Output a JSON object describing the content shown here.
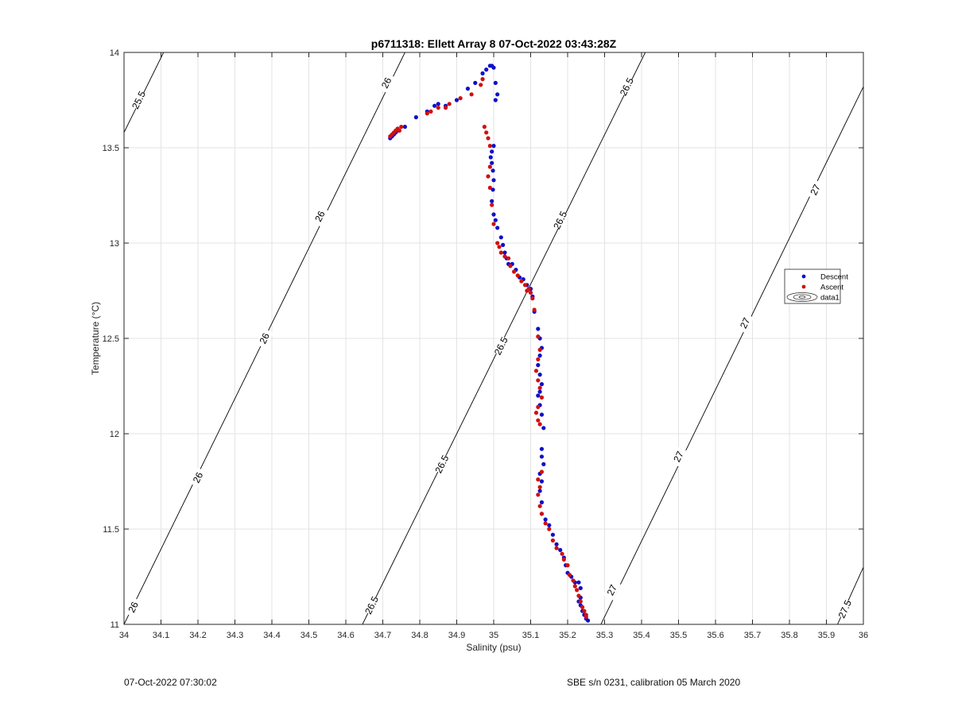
{
  "chart_data": {
    "type": "scatter",
    "title": "p6711318: Ellett Array 8 07-Oct-2022 03:43:28Z",
    "xlabel": "Salinity (psu)",
    "ylabel": "Temperature (°C)",
    "xlim": [
      34,
      36
    ],
    "ylim": [
      11,
      14
    ],
    "xticks": [
      "34",
      "34.1",
      "34.2",
      "34.3",
      "34.4",
      "34.5",
      "34.6",
      "34.7",
      "34.8",
      "34.9",
      "35",
      "35.1",
      "35.2",
      "35.3",
      "35.4",
      "35.5",
      "35.6",
      "35.7",
      "35.8",
      "35.9",
      "36"
    ],
    "yticks": [
      "11",
      "11.5",
      "12",
      "12.5",
      "13",
      "13.5",
      "14"
    ],
    "grid": true,
    "legend": {
      "placement": "right",
      "entries": [
        "Descent",
        "Ascent",
        "data1"
      ]
    },
    "colors": {
      "descent": "#1010c8",
      "ascent": "#d01010",
      "contour": "#000000",
      "grid": "#e3e3e3"
    },
    "series": [
      {
        "name": "Descent",
        "x": [
          34.72,
          34.725,
          34.73,
          34.735,
          34.74,
          34.76,
          34.79,
          34.82,
          34.84,
          34.85,
          34.87,
          34.9,
          34.93,
          34.95,
          34.97,
          34.98,
          34.99,
          34.995,
          35.0,
          35.005,
          35.01,
          35.005,
          35.0,
          34.995,
          34.992,
          34.995,
          34.998,
          35.0,
          34.998,
          34.995,
          35.0,
          35.005,
          35.01,
          35.02,
          35.025,
          35.03,
          35.035,
          35.04,
          35.05,
          35.06,
          35.07,
          35.08,
          35.09,
          35.1,
          35.105,
          35.11,
          35.12,
          35.125,
          35.13,
          35.125,
          35.12,
          35.125,
          35.13,
          35.125,
          35.12,
          35.125,
          35.13,
          35.135,
          35.13,
          35.13,
          35.135,
          35.125,
          35.13,
          35.125,
          35.13,
          35.13,
          35.14,
          35.15,
          35.16,
          35.17,
          35.18,
          35.19,
          35.195,
          35.2,
          35.21,
          35.22,
          35.23,
          35.235,
          35.235,
          35.23,
          35.235,
          35.24,
          35.245,
          35.25,
          35.255
        ],
        "y": [
          13.55,
          13.56,
          13.57,
          13.58,
          13.59,
          13.61,
          13.66,
          13.69,
          13.72,
          13.73,
          13.72,
          13.75,
          13.81,
          13.84,
          13.89,
          13.91,
          13.93,
          13.93,
          13.92,
          13.84,
          13.78,
          13.75,
          13.51,
          13.48,
          13.45,
          13.42,
          13.38,
          13.33,
          13.28,
          13.22,
          13.15,
          13.12,
          13.08,
          13.03,
          12.99,
          12.95,
          12.92,
          12.89,
          12.89,
          12.86,
          12.82,
          12.81,
          12.78,
          12.76,
          12.72,
          12.64,
          12.55,
          12.5,
          12.45,
          12.41,
          12.36,
          12.31,
          12.26,
          12.22,
          12.2,
          12.15,
          12.1,
          12.03,
          11.92,
          11.88,
          11.84,
          11.79,
          11.75,
          11.7,
          11.64,
          11.58,
          11.55,
          11.52,
          11.47,
          11.42,
          11.39,
          11.35,
          11.31,
          11.27,
          11.25,
          11.22,
          11.22,
          11.19,
          11.14,
          11.12,
          11.1,
          11.07,
          11.05,
          11.03,
          11.02
        ]
      },
      {
        "name": "Ascent",
        "x": [
          34.725,
          34.73,
          34.735,
          34.74,
          34.745,
          34.75,
          34.72,
          34.82,
          34.83,
          34.85,
          34.87,
          34.88,
          34.91,
          34.94,
          34.965,
          34.97,
          34.975,
          34.98,
          34.985,
          34.99,
          34.99,
          34.985,
          34.99,
          34.995,
          35.0,
          35.01,
          35.015,
          35.02,
          35.03,
          35.04,
          35.045,
          35.055,
          35.065,
          35.075,
          35.085,
          35.09,
          35.095,
          35.1,
          35.105,
          35.11,
          35.12,
          35.125,
          35.12,
          35.115,
          35.12,
          35.125,
          35.13,
          35.12,
          35.115,
          35.12,
          35.125,
          35.13,
          35.12,
          35.125,
          35.12,
          35.125,
          35.13,
          35.14,
          35.15,
          35.16,
          35.17,
          35.185,
          35.19,
          35.2,
          35.205,
          35.215,
          35.22,
          35.225,
          35.23,
          35.235,
          35.24,
          35.245,
          35.25,
          35.25
        ],
        "y": [
          13.57,
          13.58,
          13.59,
          13.6,
          13.59,
          13.61,
          13.56,
          13.68,
          13.69,
          13.71,
          13.71,
          13.73,
          13.76,
          13.78,
          13.83,
          13.86,
          13.61,
          13.58,
          13.55,
          13.51,
          13.4,
          13.35,
          13.29,
          13.2,
          13.1,
          13.0,
          12.98,
          12.95,
          12.93,
          12.92,
          12.88,
          12.85,
          12.83,
          12.8,
          12.78,
          12.75,
          12.76,
          12.74,
          12.71,
          12.65,
          12.51,
          12.44,
          12.39,
          12.33,
          12.28,
          12.24,
          12.19,
          12.14,
          12.11,
          12.07,
          12.05,
          11.8,
          11.76,
          11.72,
          11.68,
          11.62,
          11.58,
          11.53,
          11.5,
          11.44,
          11.4,
          11.37,
          11.34,
          11.31,
          11.26,
          11.23,
          11.2,
          11.18,
          11.15,
          11.12,
          11.09,
          11.07,
          11.05,
          11.04
        ]
      }
    ],
    "isopycnals": [
      {
        "name": "25.5",
        "x": [
          34.0,
          34.107
        ],
        "y": [
          13.58,
          14.0
        ],
        "labels": [
          {
            "text": "25.5",
            "x": 34.04,
            "y": 13.75
          }
        ]
      },
      {
        "name": "26",
        "x": [
          34.0,
          34.76
        ],
        "y": [
          11.0,
          14.0
        ],
        "labels": [
          {
            "text": "26",
            "x": 34.025,
            "y": 11.09
          },
          {
            "text": "26",
            "x": 34.2,
            "y": 11.77
          },
          {
            "text": "26",
            "x": 34.38,
            "y": 12.5
          },
          {
            "text": "26",
            "x": 34.53,
            "y": 13.14
          },
          {
            "text": "26",
            "x": 34.71,
            "y": 13.84
          }
        ]
      },
      {
        "name": "26.5",
        "x": [
          34.645,
          35.41
        ],
        "y": [
          11.0,
          14.0
        ],
        "labels": [
          {
            "text": "26.5",
            "x": 34.67,
            "y": 11.1
          },
          {
            "text": "26.5",
            "x": 34.86,
            "y": 11.84
          },
          {
            "text": "26.5",
            "x": 35.02,
            "y": 12.46
          },
          {
            "text": "26.5",
            "x": 35.18,
            "y": 13.12
          },
          {
            "text": "26.5",
            "x": 35.36,
            "y": 13.82
          }
        ]
      },
      {
        "name": "27",
        "x": [
          35.29,
          36.0
        ],
        "y": [
          11.0,
          13.82
        ],
        "labels": [
          {
            "text": "27",
            "x": 35.32,
            "y": 11.18
          },
          {
            "text": "27",
            "x": 35.5,
            "y": 11.88
          },
          {
            "text": "27",
            "x": 35.68,
            "y": 12.58
          },
          {
            "text": "27",
            "x": 35.87,
            "y": 13.28
          }
        ]
      },
      {
        "name": "27.5",
        "x": [
          35.93,
          36.0
        ],
        "y": [
          11.0,
          11.3
        ],
        "labels": [
          {
            "text": "27.5",
            "x": 35.95,
            "y": 11.08
          }
        ]
      }
    ]
  },
  "footer": {
    "left_text": "07-Oct-2022 07:30:02",
    "right_text": "SBE s/n 0231, calibration 05 March 2020"
  }
}
